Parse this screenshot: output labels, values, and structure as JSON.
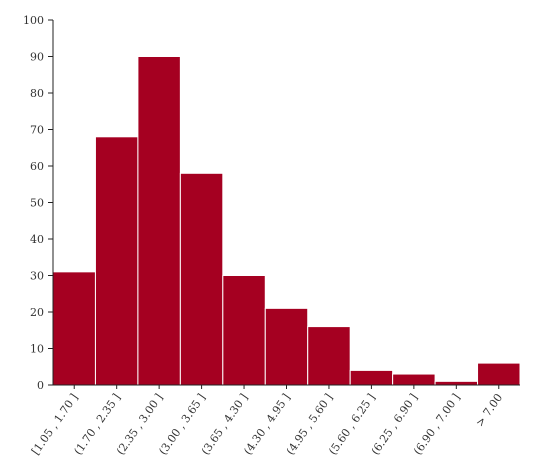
{
  "chart_data": {
    "type": "bar",
    "title": "",
    "xlabel": "",
    "ylabel": "",
    "categories": [
      "[1.05 , 1.70 ]",
      "(1.70 , 2.35 ]",
      "(2.35 , 3.00 ]",
      "(3.00 , 3.65 ]",
      "(3.65 , 4.30 ]",
      "(4.30 , 4.95 ]",
      "(4.95 , 5.60 ]",
      "(5.60 , 6.25 ]",
      "(6.25 , 6.90 ]",
      "(6.90 , 7.00 ]",
      "> 7.00"
    ],
    "values": [
      31,
      68,
      90,
      58,
      30,
      21,
      16,
      4,
      3,
      1,
      6
    ],
    "ylim": [
      0,
      100
    ],
    "yticks": [
      0,
      10,
      20,
      30,
      40,
      50,
      60,
      70,
      80,
      90,
      100
    ],
    "grid": false,
    "bar_color": "#a50021"
  }
}
